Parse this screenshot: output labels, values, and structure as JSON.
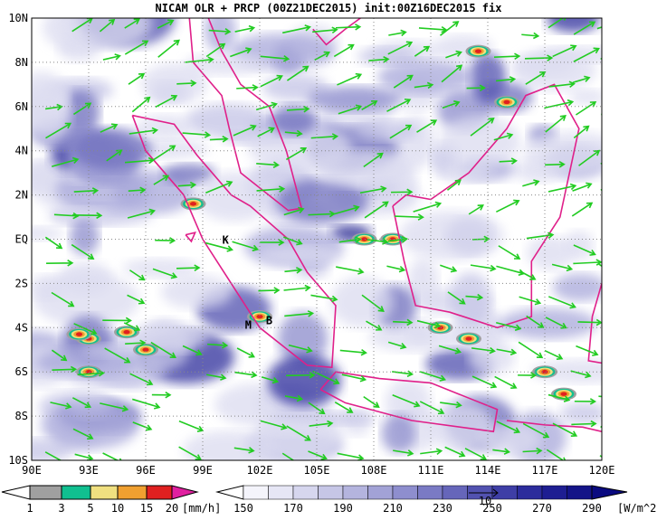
{
  "title": "NICAM OLR + PRCP (00Z21DEC2015) init:00Z16DEC2015 fix",
  "lat_labels": [
    "10N",
    "8N",
    "6N",
    "4N",
    "2N",
    "EQ",
    "2S",
    "4S",
    "6S",
    "8S",
    "10S"
  ],
  "lon_labels": [
    "90E",
    "93E",
    "96E",
    "99E",
    "102E",
    "105E",
    "108E",
    "111E",
    "114E",
    "117E",
    "120E"
  ],
  "stations": [
    "K",
    "M",
    "B"
  ],
  "prcp_colorbar": {
    "labels": [
      "1",
      "3",
      "5",
      "10",
      "15",
      "20"
    ],
    "unit": "[mm/h]"
  },
  "olr_colorbar": {
    "labels": [
      "150",
      "170",
      "190",
      "210",
      "230",
      "250",
      "270",
      "290"
    ],
    "unit": "[W/m^2]"
  },
  "vector_scale": "10"
}
